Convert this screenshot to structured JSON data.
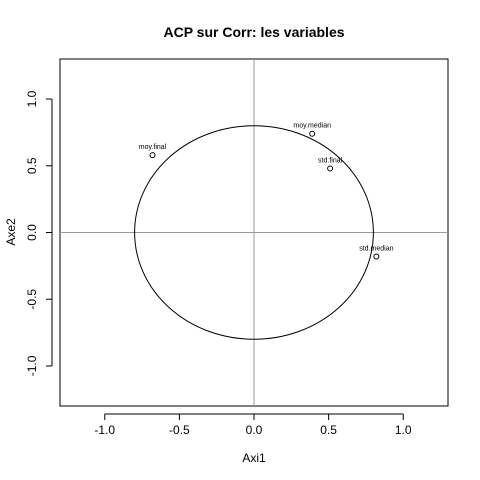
{
  "chart_data": {
    "type": "scatter",
    "title": "ACP sur Corr: les variables",
    "xlabel": "Axi1",
    "ylabel": "Axe2",
    "xlim": [
      -1.3,
      1.3
    ],
    "ylim": [
      -1.3,
      1.3
    ],
    "x_ticks": [
      -1.0,
      -0.5,
      0.0,
      0.5,
      1.0
    ],
    "x_tick_labels": [
      "-1.0",
      "-0.5",
      "0.0",
      "0.5",
      "1.0"
    ],
    "y_ticks": [
      -1.0,
      -0.5,
      0.0,
      0.5,
      1.0
    ],
    "y_tick_labels": [
      "-1.0",
      "-0.5",
      "0.0",
      "0.5",
      "1.0"
    ],
    "circle": {
      "cx": 0,
      "cy": 0,
      "r": 0.8
    },
    "reference_lines": {
      "x": 0,
      "y": 0,
      "color": "#999999"
    },
    "points": [
      {
        "label": "moy.final",
        "x": -0.68,
        "y": 0.58
      },
      {
        "label": "moy.median",
        "x": 0.39,
        "y": 0.74
      },
      {
        "label": "std.final",
        "x": 0.51,
        "y": 0.48
      },
      {
        "label": "std.median",
        "x": 0.82,
        "y": -0.18
      }
    ],
    "colors": {
      "axis": "#000000",
      "reference": "#999999",
      "points": "#000000"
    }
  }
}
